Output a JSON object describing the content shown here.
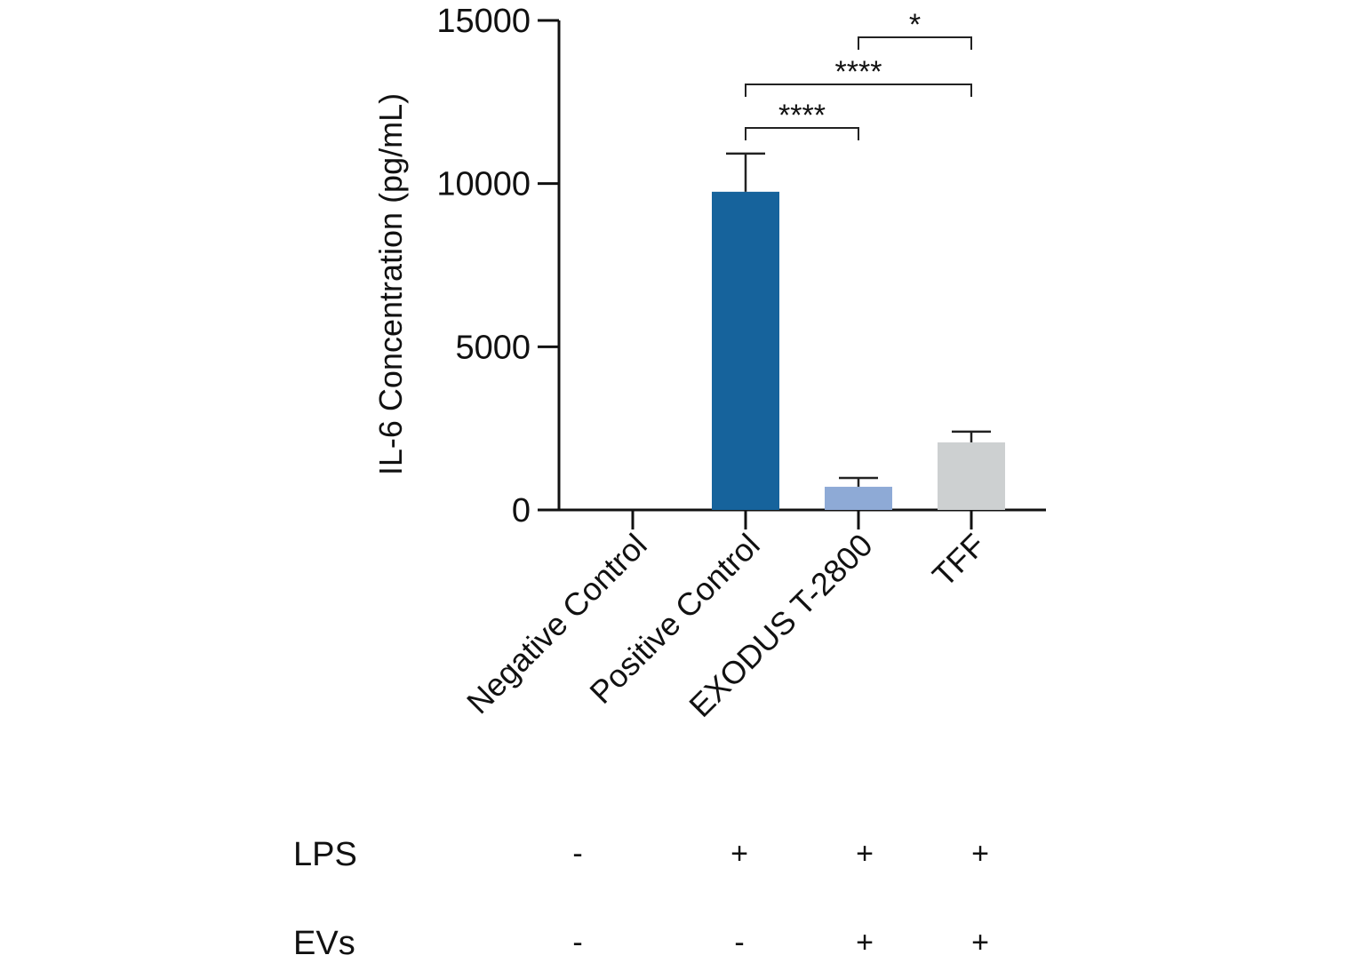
{
  "chart_data": {
    "type": "bar",
    "title": "",
    "xlabel": "",
    "ylabel": "IL-6 Concentration (pg/mL)",
    "ylim": [
      0,
      15000
    ],
    "yticks": [
      0,
      5000,
      10000,
      15000
    ],
    "grid": false,
    "categories": [
      "Negative Control",
      "Positive Control",
      "EXODUS T-2800",
      "TFF"
    ],
    "values": [
      0,
      9750,
      710,
      2070
    ],
    "error_upper": [
      0,
      10920,
      980,
      2400
    ],
    "colors": [
      "#16639c",
      "#16639c",
      "#8eaad6",
      "#cdd0d1"
    ],
    "significance": [
      {
        "from": "Positive Control",
        "to": "EXODUS T-2800",
        "label": "****"
      },
      {
        "from": "Positive Control",
        "to": "TFF",
        "label": "****"
      },
      {
        "from": "EXODUS T-2800",
        "to": "TFF",
        "label": "*"
      }
    ],
    "conditions": [
      {
        "label": "LPS",
        "values": [
          "-",
          "+",
          "+",
          "+"
        ]
      },
      {
        "label": "EVs",
        "values": [
          "-",
          "-",
          "+",
          "+"
        ]
      }
    ]
  }
}
